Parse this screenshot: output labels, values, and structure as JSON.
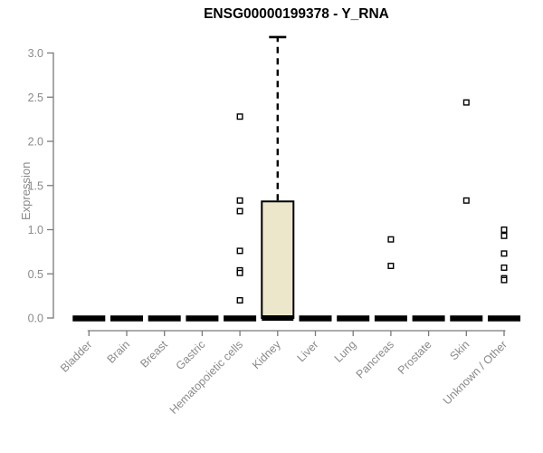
{
  "title": "ENSG00000199378 - Y_RNA",
  "colors": {
    "box_fill": "#ece7cb",
    "box_border": "#000000",
    "element": "#000000",
    "axis": "#7a7a7a",
    "tick_text": "#8a8a8a",
    "title_text": "#000000"
  },
  "chart_data": {
    "type": "boxplot",
    "title": "ENSG00000199378 - Y_RNA",
    "xlabel": "",
    "ylabel": "Expression",
    "ylim": [
      0,
      3.2
    ],
    "yticks": [
      0,
      0.5,
      1,
      1.5,
      2,
      2.5,
      3
    ],
    "grid": false,
    "legend_position": "none",
    "categories": [
      "Bladder",
      "Brain",
      "Breast",
      "Gastric",
      "Hematopoietic cells",
      "Kidney",
      "Liver",
      "Lung",
      "Pancreas",
      "Prostate",
      "Skin",
      "Unknown / Other"
    ],
    "boxes": [
      {
        "category": "Bladder",
        "whisker_low": 0,
        "q1": 0,
        "median": 0,
        "q3": 0,
        "whisker_high": 0,
        "outliers": []
      },
      {
        "category": "Brain",
        "whisker_low": 0,
        "q1": 0,
        "median": 0,
        "q3": 0,
        "whisker_high": 0,
        "outliers": []
      },
      {
        "category": "Breast",
        "whisker_low": 0,
        "q1": 0,
        "median": 0,
        "q3": 0,
        "whisker_high": 0,
        "outliers": []
      },
      {
        "category": "Gastric",
        "whisker_low": 0,
        "q1": 0,
        "median": 0,
        "q3": 0,
        "whisker_high": 0,
        "outliers": []
      },
      {
        "category": "Hematopoietic cells",
        "whisker_low": 0,
        "q1": 0,
        "median": 0,
        "q3": 0,
        "whisker_high": 0,
        "outliers": [
          2.28,
          1.33,
          1.21,
          0.76,
          0.54,
          0.51,
          0.2
        ]
      },
      {
        "category": "Kidney",
        "whisker_low": 0,
        "q1": 0,
        "median": 0,
        "q3": 1.32,
        "whisker_high": 3.18,
        "outliers": []
      },
      {
        "category": "Liver",
        "whisker_low": 0,
        "q1": 0,
        "median": 0,
        "q3": 0,
        "whisker_high": 0,
        "outliers": []
      },
      {
        "category": "Lung",
        "whisker_low": 0,
        "q1": 0,
        "median": 0,
        "q3": 0,
        "whisker_high": 0,
        "outliers": []
      },
      {
        "category": "Pancreas",
        "whisker_low": 0,
        "q1": 0,
        "median": 0,
        "q3": 0,
        "whisker_high": 0,
        "outliers": [
          0.89,
          0.59
        ]
      },
      {
        "category": "Prostate",
        "whisker_low": 0,
        "q1": 0,
        "median": 0,
        "q3": 0,
        "whisker_high": 0,
        "outliers": []
      },
      {
        "category": "Skin",
        "whisker_low": 0,
        "q1": 0,
        "median": 0,
        "q3": 0,
        "whisker_high": 0,
        "outliers": [
          2.44,
          1.33
        ]
      },
      {
        "category": "Unknown / Other",
        "whisker_low": 0,
        "q1": 0,
        "median": 0,
        "q3": 0,
        "whisker_high": 0,
        "outliers": [
          1.0,
          0.93,
          0.73,
          0.57,
          0.45,
          0.43
        ]
      }
    ]
  }
}
